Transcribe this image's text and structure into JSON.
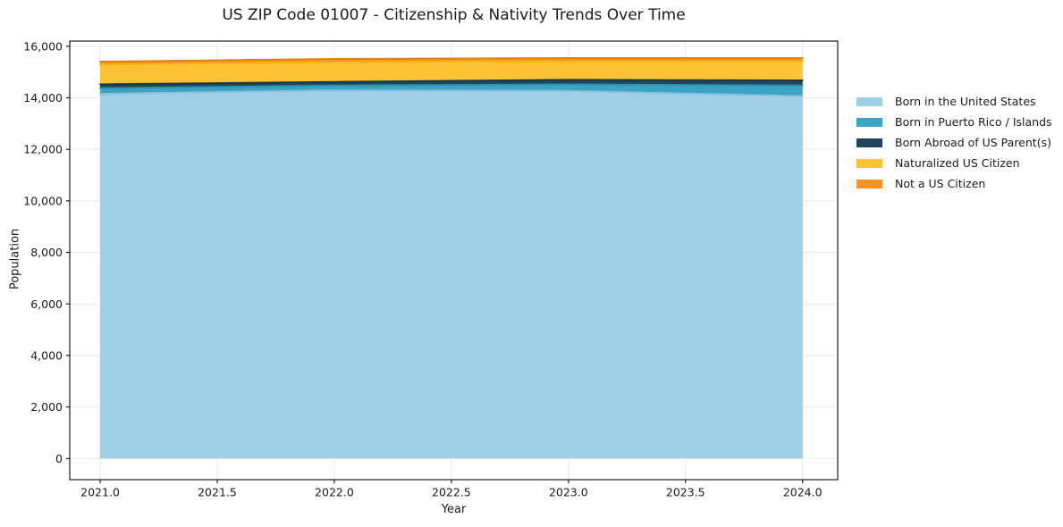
{
  "chart_data": {
    "type": "area",
    "stacked": true,
    "title": "US ZIP Code 01007 - Citizenship & Nativity Trends Over Time",
    "xlabel": "Year",
    "ylabel": "Population",
    "x": [
      2021,
      2022,
      2023,
      2024
    ],
    "series": [
      {
        "name": "Born in the United States",
        "color": "#9fd0e5",
        "edge": "#8ac2dc",
        "values": [
          14150,
          14290,
          14265,
          14060
        ]
      },
      {
        "name": "Born in Puerto Rico / Islands",
        "color": "#3ba4c4",
        "edge": "#2d92b2",
        "values": [
          220,
          185,
          255,
          415
        ]
      },
      {
        "name": "Born Abroad of US Parent(s)",
        "color": "#21465a",
        "edge": "#16394a",
        "values": [
          150,
          140,
          175,
          200
        ]
      },
      {
        "name": "Naturalized US Citizen",
        "color": "#fcc233",
        "edge": "#f4b312",
        "values": [
          770,
          775,
          730,
          750
        ]
      },
      {
        "name": "Not a US Citizen",
        "color": "#f6941f",
        "edge": "#e5820d",
        "values": [
          110,
          115,
          115,
          115
        ]
      }
    ],
    "xlim": [
      2020.87,
      2024.15
    ],
    "ylim": [
      -820,
      16200
    ],
    "xticks": [
      {
        "value": 2021.0,
        "label": "2021.0"
      },
      {
        "value": 2021.5,
        "label": "2021.5"
      },
      {
        "value": 2022.0,
        "label": "2022.0"
      },
      {
        "value": 2022.5,
        "label": "2022.5"
      },
      {
        "value": 2023.0,
        "label": "2023.0"
      },
      {
        "value": 2023.5,
        "label": "2023.5"
      },
      {
        "value": 2024.0,
        "label": "2024.0"
      }
    ],
    "yticks": [
      {
        "value": 0,
        "label": "0"
      },
      {
        "value": 2000,
        "label": "2,000"
      },
      {
        "value": 4000,
        "label": "4,000"
      },
      {
        "value": 6000,
        "label": "6,000"
      },
      {
        "value": 8000,
        "label": "8,000"
      },
      {
        "value": 10000,
        "label": "10,000"
      },
      {
        "value": 12000,
        "label": "12,000"
      },
      {
        "value": 14000,
        "label": "14,000"
      },
      {
        "value": 16000,
        "label": "16,000"
      }
    ],
    "grid": true,
    "legend_position": "right-outside"
  }
}
